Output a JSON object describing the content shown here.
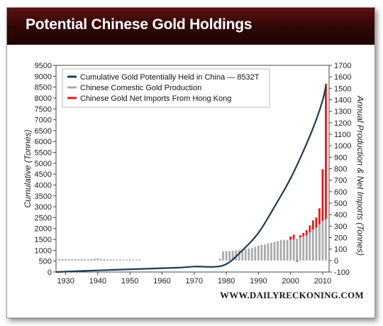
{
  "title": "Potential Chinese Gold Holdings",
  "source": "WWW.DAILYRECKONING.COM",
  "colors": {
    "title_bg": "#3b0808",
    "line": "#1d3c52",
    "production": "#ababab",
    "imports": "#dd1c1c"
  },
  "chart_data": {
    "type": "bar+line",
    "xlim": [
      1927,
      2012
    ],
    "x_ticks": [
      1930,
      1940,
      1950,
      1960,
      1970,
      1980,
      1990,
      2000,
      2010
    ],
    "y_left": {
      "label": "Cumulative (Tonnes)",
      "lim": [
        0,
        9500
      ],
      "ticks": [
        0,
        500,
        1000,
        1500,
        2000,
        2500,
        3000,
        3500,
        4000,
        4500,
        5000,
        5500,
        6000,
        6500,
        7000,
        7500,
        8000,
        8500,
        9000,
        9500
      ]
    },
    "y_right": {
      "label": "Annual Production & Net Imports (Tonnes)",
      "lim": [
        -100,
        1700
      ],
      "ticks": [
        -100,
        0,
        100,
        200,
        300,
        400,
        500,
        600,
        700,
        800,
        900,
        1000,
        1100,
        1200,
        1300,
        1400,
        1500,
        1600,
        1700
      ]
    },
    "grid": false,
    "legend_position": "top-left",
    "series": [
      {
        "name": "Cumulative Gold Potentially Held in China — 8532T",
        "kind": "line",
        "axis": "left",
        "x": [
          1927,
          1935,
          1945,
          1955,
          1965,
          1970,
          1979,
          1985,
          1990,
          1995,
          2000,
          2005,
          2008,
          2010,
          2011
        ],
        "y": [
          0,
          50,
          100,
          150,
          200,
          250,
          300,
          1000,
          1800,
          3000,
          4300,
          5900,
          7000,
          7900,
          8532
        ]
      },
      {
        "name": "Chinese Comestic Gold Production",
        "kind": "bar",
        "axis": "right",
        "x": [
          1927,
          1928,
          1929,
          1930,
          1931,
          1932,
          1933,
          1934,
          1935,
          1936,
          1937,
          1938,
          1939,
          1940,
          1941,
          1942,
          1943,
          1944,
          1945,
          1946,
          1947,
          1948,
          1949,
          1950,
          1951,
          1952,
          1953,
          1978,
          1979,
          1980,
          1981,
          1982,
          1983,
          1984,
          1985,
          1986,
          1987,
          1988,
          1989,
          1990,
          1991,
          1992,
          1993,
          1994,
          1995,
          1996,
          1997,
          1998,
          1999,
          2000,
          2001,
          2002,
          2003,
          2004,
          2005,
          2006,
          2007,
          2008,
          2009,
          2010,
          2011
        ],
        "y": [
          14,
          15,
          14,
          13,
          13,
          12,
          13,
          12,
          15,
          13,
          12,
          14,
          16,
          20,
          14,
          12,
          10,
          10,
          8,
          8,
          9,
          8,
          8,
          10,
          8,
          8,
          10,
          18,
          80,
          80,
          82,
          85,
          88,
          90,
          95,
          100,
          105,
          110,
          120,
          130,
          135,
          140,
          150,
          155,
          160,
          170,
          180,
          180,
          180,
          180,
          185,
          190,
          200,
          210,
          220,
          245,
          270,
          285,
          315,
          345,
          360
        ]
      },
      {
        "name": "Chinese Gold Net Imports From Hong Kong",
        "kind": "bar",
        "axis": "right",
        "stacked_on": "Chinese Comestic Gold Production",
        "x": [
          2000,
          2001,
          2002,
          2003,
          2004,
          2005,
          2006,
          2007,
          2008,
          2009,
          2010,
          2011
        ],
        "y": [
          30,
          40,
          -10,
          20,
          30,
          45,
          60,
          80,
          90,
          140,
          450,
          1180
        ]
      }
    ]
  }
}
